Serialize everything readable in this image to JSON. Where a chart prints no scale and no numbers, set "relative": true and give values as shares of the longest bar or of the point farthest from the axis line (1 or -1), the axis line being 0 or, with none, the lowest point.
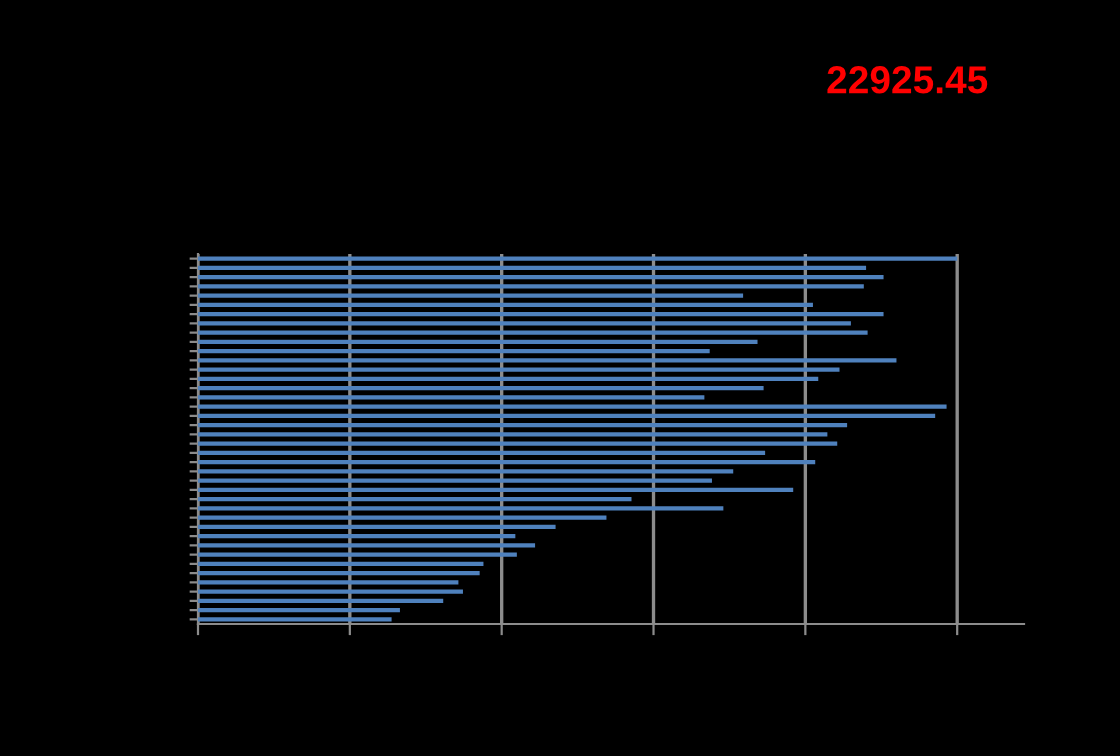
{
  "chart_data": {
    "type": "bar",
    "orientation": "horizontal",
    "relative": true,
    "grid": "x",
    "title": "22925.45",
    "categories": [
      null,
      null,
      null,
      null,
      null,
      null,
      null,
      null,
      null,
      null,
      null,
      null,
      null,
      null,
      null,
      null,
      null,
      null,
      null,
      null,
      null,
      null,
      null,
      null,
      null,
      null,
      null,
      null,
      null,
      null,
      null,
      null,
      null,
      null,
      null,
      null,
      null,
      null,
      null,
      null
    ],
    "series": [
      {
        "color": "#4f81bd",
        "values": [
          1,
          0.88,
          0.903,
          0.877,
          0.718,
          0.81,
          0.903,
          0.86,
          0.882,
          0.737,
          0.674,
          0.92,
          0.845,
          0.817,
          0.745,
          0.667,
          0.986,
          0.971,
          0.855,
          0.829,
          0.842,
          0.747,
          0.813,
          0.705,
          0.677,
          0.784,
          0.571,
          0.692,
          0.538,
          0.471,
          0.418,
          0.444,
          0.42,
          0.376,
          0.371,
          0.343,
          0.349,
          0.323,
          0.266,
          0.255
        ]
      }
    ]
  }
}
